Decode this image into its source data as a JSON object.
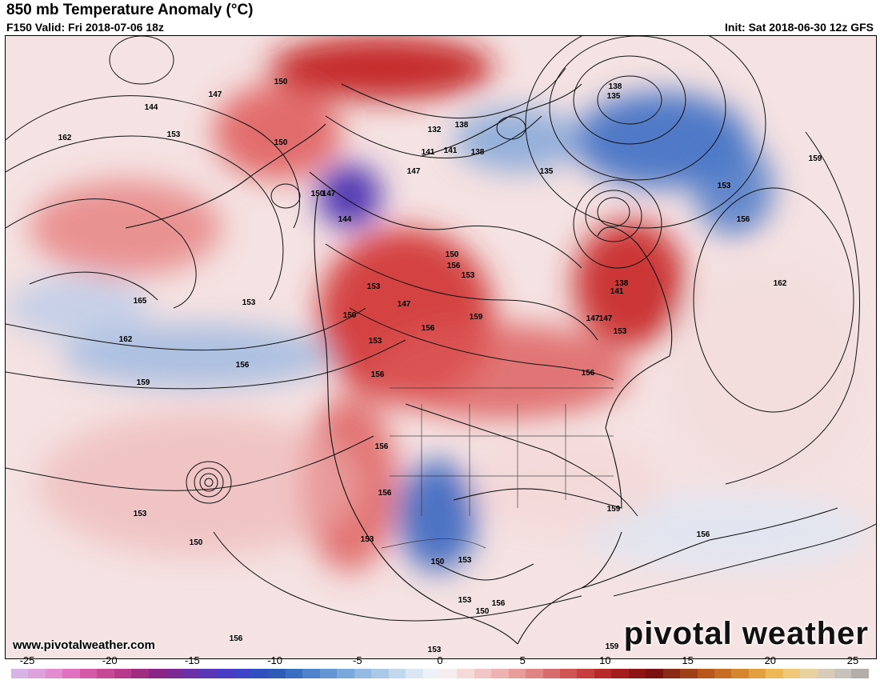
{
  "header": {
    "title": "850 mb Temperature Anomaly (°C)",
    "valid": "F150 Valid: Fri 2018-07-06 18z",
    "init": "Init: Sat 2018-06-30 12z GFS"
  },
  "footer": {
    "website": "www.pivotalweather.com",
    "logo": "pivotal weather"
  },
  "colorbar": {
    "ticks": [
      "-25",
      "-20",
      "-15",
      "-10",
      "-5",
      "0",
      "5",
      "10",
      "15",
      "20",
      "25"
    ],
    "colors": [
      "#d8b4e6",
      "#e0a0dc",
      "#e48cd0",
      "#e070c0",
      "#d858a8",
      "#c84898",
      "#b83a8c",
      "#a02c84",
      "#8c2488",
      "#7a2a92",
      "#6a30a8",
      "#5a36b8",
      "#4a3cc4",
      "#3c44c8",
      "#3050c0",
      "#2c5cb8",
      "#3a6ec4",
      "#4e82cc",
      "#6496d4",
      "#7aa8dc",
      "#92bae2",
      "#aac8e8",
      "#c2d8ee",
      "#dae6f4",
      "#eef2f8",
      "#f6eeee",
      "#f6dada",
      "#f2c6c6",
      "#eeb2b2",
      "#e89c9c",
      "#e08484",
      "#d86c6c",
      "#d05454",
      "#c63e3e",
      "#b82a2a",
      "#a41c1c",
      "#8e1414",
      "#7a1010",
      "#8a2a14",
      "#a04018",
      "#b8561c",
      "#c86c24",
      "#d8862e",
      "#e4a040",
      "#ecb858",
      "#f0c87a",
      "#e8d2a0",
      "#d8ccb8",
      "#c8c2bc",
      "#b4aeaa"
    ]
  },
  "map": {
    "contour_labels": [
      "144",
      "147",
      "150",
      "150",
      "153",
      "162",
      "165",
      "162",
      "159",
      "153",
      "156",
      "150",
      "147",
      "144",
      "153",
      "156",
      "153",
      "156",
      "156",
      "150",
      "147",
      "150",
      "153",
      "156",
      "159",
      "153",
      "150",
      "147",
      "141",
      "138",
      "132",
      "141",
      "138",
      "135",
      "138",
      "135",
      "147",
      "153",
      "156",
      "159",
      "162",
      "156",
      "153",
      "150",
      "147",
      "141",
      "138",
      "156",
      "159",
      "156",
      "153",
      "150",
      "153",
      "156",
      "159",
      "153",
      "156",
      "153"
    ]
  }
}
